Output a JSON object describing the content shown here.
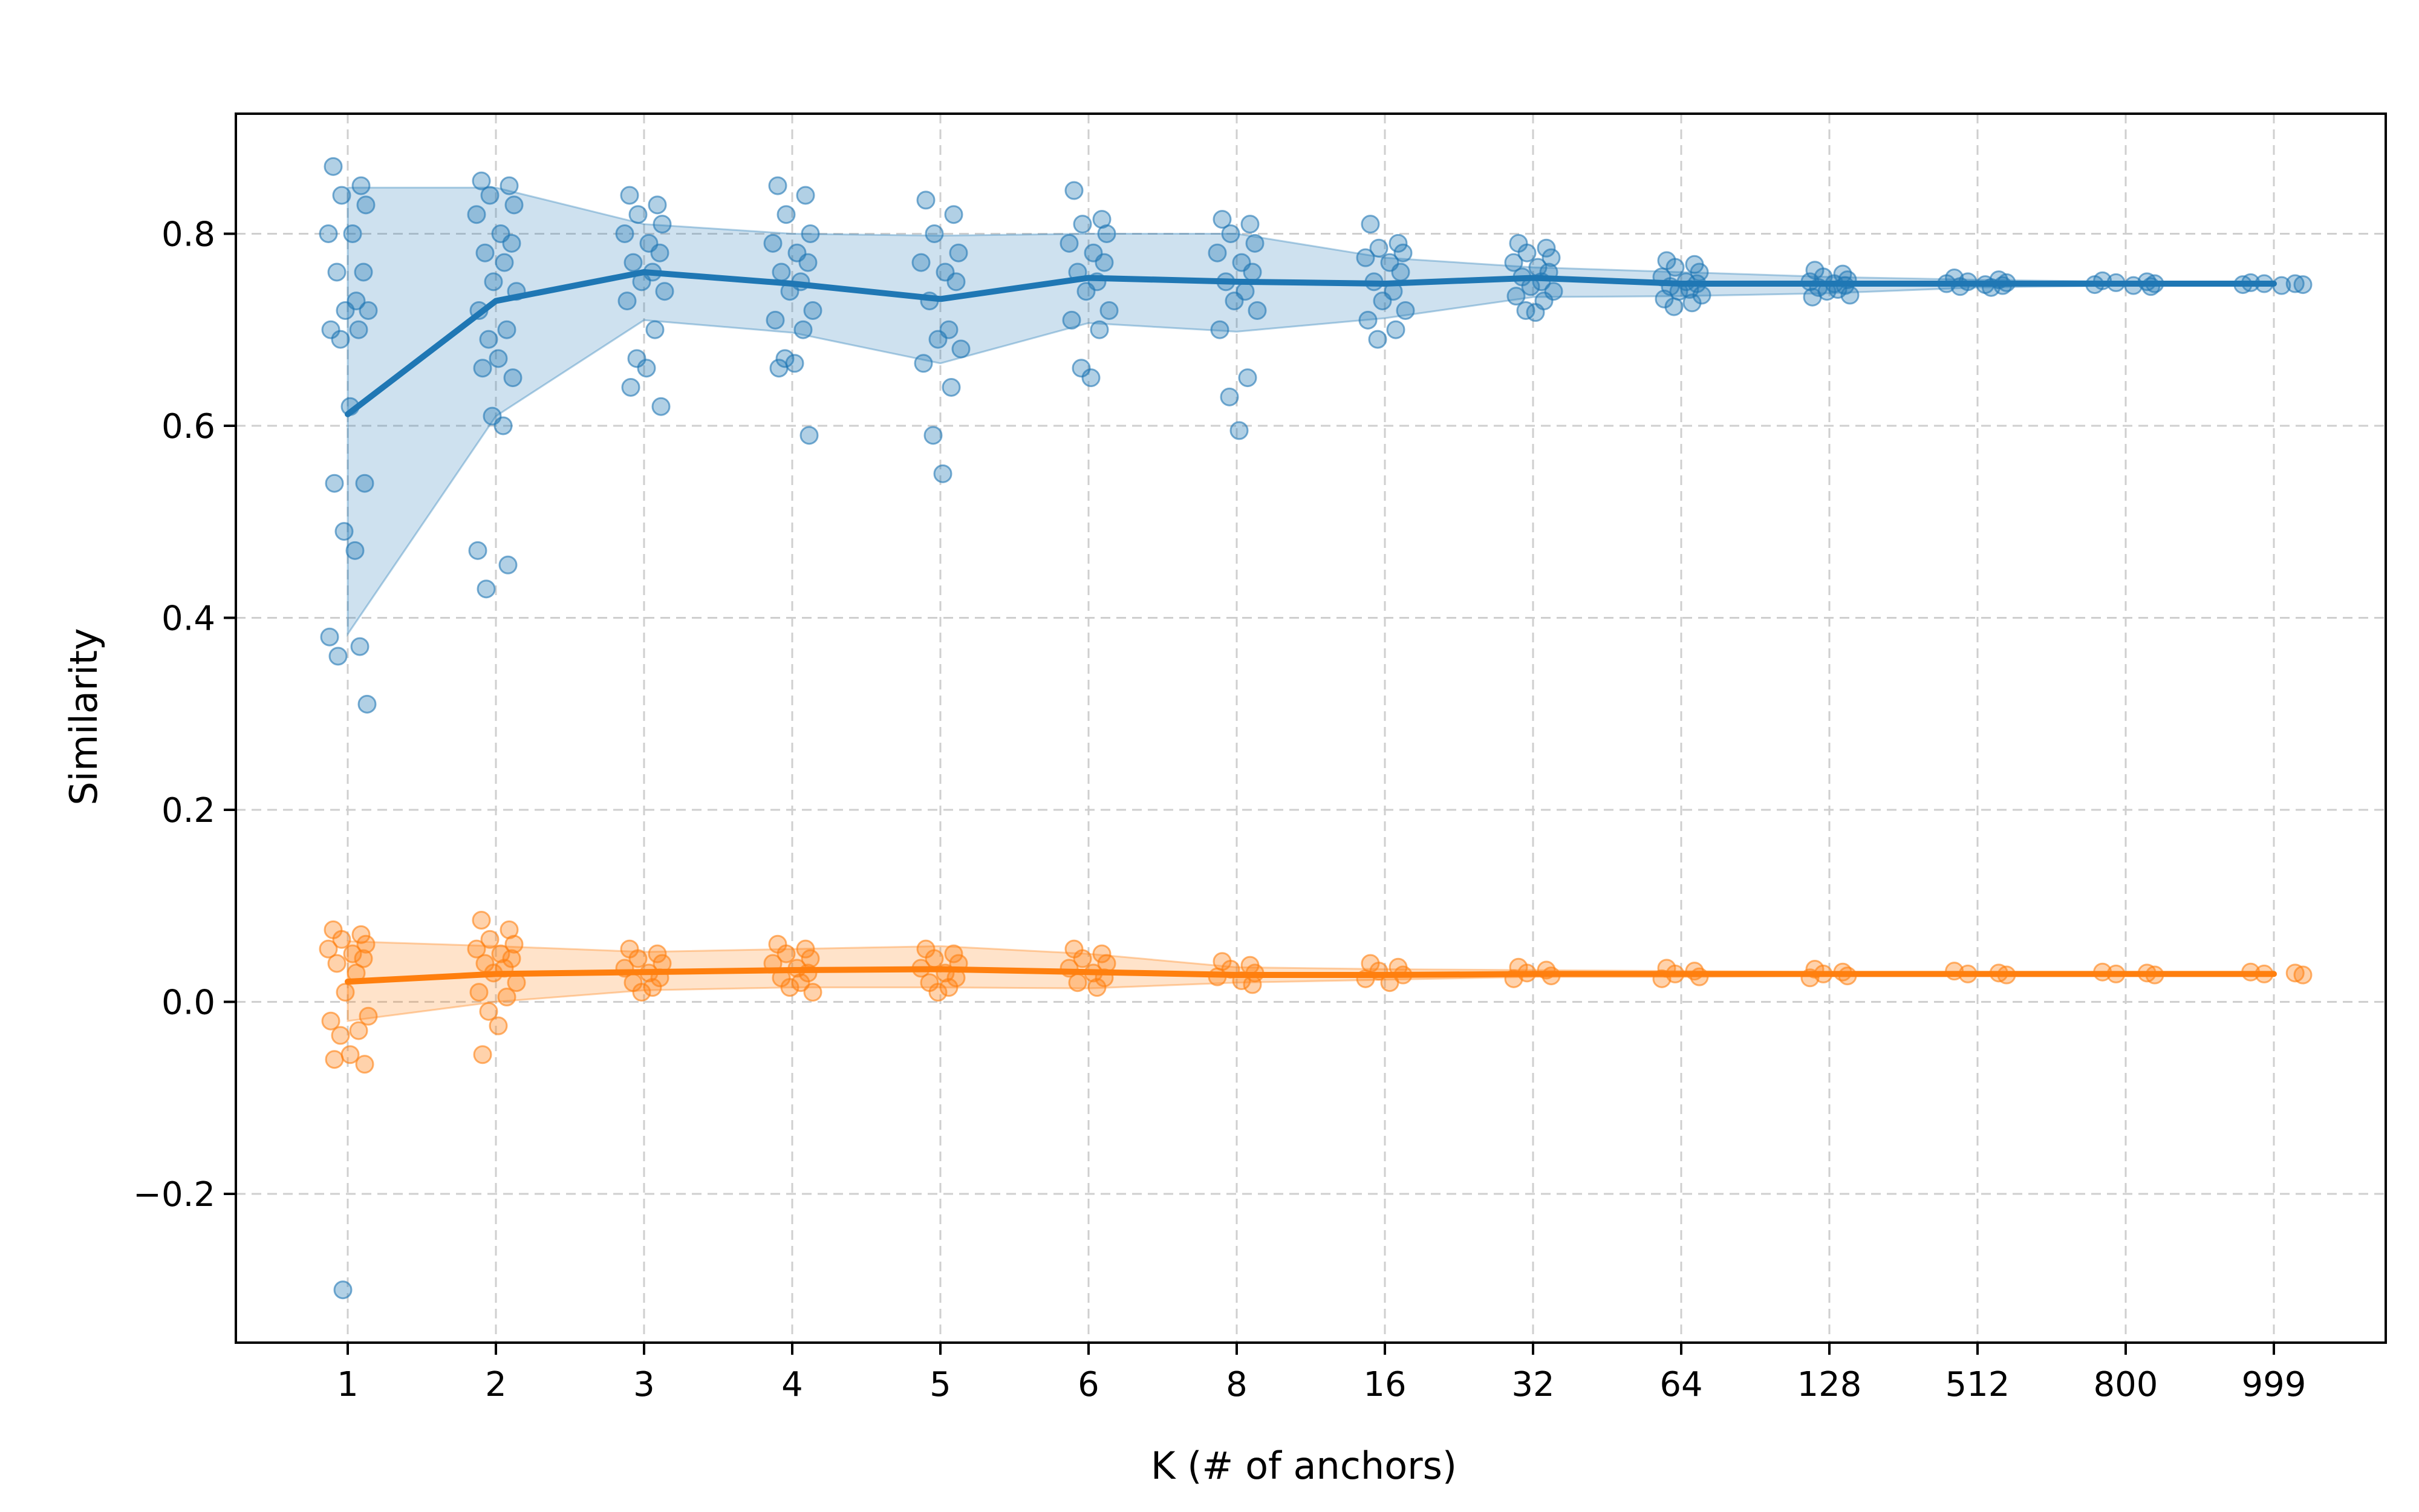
{
  "chart_data": {
    "type": "line",
    "title": "",
    "xlabel": "K (# of anchors)",
    "ylabel": "Similarity",
    "categories": [
      "1",
      "2",
      "3",
      "4",
      "5",
      "6",
      "8",
      "16",
      "32",
      "64",
      "128",
      "512",
      "800",
      "999"
    ],
    "y_ticks": [
      -0.2,
      0.0,
      0.2,
      0.4,
      0.6,
      0.8
    ],
    "y_tick_labels": [
      "−0.2",
      "0.0",
      "0.2",
      "0.4",
      "0.6",
      "0.8"
    ],
    "ylim": [
      -0.355,
      0.925
    ],
    "grid": true,
    "series": [
      {
        "name": "series-blue",
        "color": "#1f77b4",
        "mean": [
          0.612,
          0.73,
          0.76,
          0.748,
          0.732,
          0.754,
          0.75,
          0.748,
          0.754,
          0.748,
          0.748,
          0.748,
          0.748,
          0.748
        ],
        "upper": [
          0.848,
          0.848,
          0.81,
          0.8,
          0.798,
          0.8,
          0.8,
          0.775,
          0.765,
          0.76,
          0.755,
          0.752,
          0.75,
          0.75
        ],
        "lower": [
          0.383,
          0.61,
          0.71,
          0.697,
          0.665,
          0.707,
          0.698,
          0.712,
          0.734,
          0.735,
          0.738,
          0.744,
          0.746,
          0.746
        ],
        "points": [
          [
            0.87,
            0.85,
            0.84,
            0.83,
            0.8,
            0.8,
            0.76,
            0.76,
            0.73,
            0.72,
            0.72,
            0.7,
            0.7,
            0.69,
            0.62,
            0.54,
            0.54,
            0.49,
            0.47,
            0.38,
            0.37,
            0.36,
            0.31,
            -0.3
          ],
          [
            0.855,
            0.85,
            0.84,
            0.83,
            0.82,
            0.8,
            0.79,
            0.78,
            0.77,
            0.75,
            0.74,
            0.72,
            0.7,
            0.69,
            0.67,
            0.66,
            0.65,
            0.61,
            0.6,
            0.47,
            0.455,
            0.43
          ],
          [
            0.84,
            0.83,
            0.82,
            0.81,
            0.8,
            0.79,
            0.78,
            0.77,
            0.76,
            0.75,
            0.74,
            0.73,
            0.7,
            0.67,
            0.66,
            0.64,
            0.62
          ],
          [
            0.85,
            0.84,
            0.82,
            0.8,
            0.79,
            0.78,
            0.77,
            0.76,
            0.75,
            0.74,
            0.72,
            0.71,
            0.7,
            0.67,
            0.665,
            0.66,
            0.59
          ],
          [
            0.835,
            0.82,
            0.8,
            0.78,
            0.77,
            0.76,
            0.75,
            0.73,
            0.7,
            0.69,
            0.68,
            0.665,
            0.64,
            0.59,
            0.55
          ],
          [
            0.845,
            0.815,
            0.81,
            0.8,
            0.79,
            0.78,
            0.77,
            0.76,
            0.75,
            0.74,
            0.72,
            0.71,
            0.7,
            0.66,
            0.65
          ],
          [
            0.815,
            0.81,
            0.8,
            0.79,
            0.78,
            0.77,
            0.76,
            0.75,
            0.74,
            0.73,
            0.72,
            0.7,
            0.65,
            0.63,
            0.595
          ],
          [
            0.81,
            0.79,
            0.785,
            0.78,
            0.775,
            0.77,
            0.76,
            0.75,
            0.74,
            0.73,
            0.72,
            0.71,
            0.7,
            0.69
          ],
          [
            0.79,
            0.785,
            0.78,
            0.775,
            0.77,
            0.765,
            0.76,
            0.755,
            0.75,
            0.745,
            0.74,
            0.735,
            0.73,
            0.72,
            0.718
          ],
          [
            0.772,
            0.768,
            0.765,
            0.76,
            0.755,
            0.75,
            0.748,
            0.745,
            0.742,
            0.74,
            0.736,
            0.732,
            0.728,
            0.724
          ],
          [
            0.762,
            0.758,
            0.755,
            0.752,
            0.75,
            0.748,
            0.746,
            0.744,
            0.742,
            0.74,
            0.736,
            0.734
          ],
          [
            0.754,
            0.752,
            0.75,
            0.749,
            0.748,
            0.747,
            0.746,
            0.745,
            0.744
          ],
          [
            0.751,
            0.75,
            0.749,
            0.748,
            0.747,
            0.746,
            0.745
          ],
          [
            0.749,
            0.748,
            0.748,
            0.747,
            0.747,
            0.746
          ]
        ]
      },
      {
        "name": "series-orange",
        "color": "#ff7f0e",
        "mean": [
          0.021,
          0.029,
          0.031,
          0.033,
          0.034,
          0.031,
          0.028,
          0.028,
          0.029,
          0.029,
          0.029,
          0.029,
          0.029,
          0.029
        ],
        "upper": [
          0.063,
          0.058,
          0.052,
          0.055,
          0.058,
          0.05,
          0.036,
          0.034,
          0.033,
          0.032,
          0.031,
          0.03,
          0.03,
          0.03
        ],
        "lower": [
          -0.02,
          0.0,
          0.012,
          0.015,
          0.015,
          0.014,
          0.02,
          0.023,
          0.026,
          0.026,
          0.027,
          0.028,
          0.028,
          0.028
        ],
        "points": [
          [
            0.075,
            0.07,
            0.065,
            0.06,
            0.055,
            0.05,
            0.045,
            0.04,
            0.03,
            0.01,
            -0.015,
            -0.02,
            -0.03,
            -0.035,
            -0.055,
            -0.06,
            -0.065
          ],
          [
            0.085,
            0.075,
            0.065,
            0.06,
            0.055,
            0.05,
            0.045,
            0.04,
            0.035,
            0.03,
            0.02,
            0.01,
            0.005,
            -0.01,
            -0.025,
            -0.055
          ],
          [
            0.055,
            0.05,
            0.045,
            0.04,
            0.035,
            0.03,
            0.025,
            0.02,
            0.015,
            0.01
          ],
          [
            0.06,
            0.055,
            0.05,
            0.045,
            0.04,
            0.035,
            0.03,
            0.025,
            0.02,
            0.015,
            0.01
          ],
          [
            0.055,
            0.05,
            0.045,
            0.04,
            0.035,
            0.03,
            0.025,
            0.02,
            0.015,
            0.01
          ],
          [
            0.055,
            0.05,
            0.045,
            0.04,
            0.035,
            0.03,
            0.025,
            0.02,
            0.015
          ],
          [
            0.042,
            0.038,
            0.034,
            0.03,
            0.026,
            0.022,
            0.018
          ],
          [
            0.04,
            0.036,
            0.032,
            0.028,
            0.024,
            0.02
          ],
          [
            0.036,
            0.033,
            0.03,
            0.027,
            0.024
          ],
          [
            0.035,
            0.032,
            0.029,
            0.026,
            0.024
          ],
          [
            0.034,
            0.031,
            0.029,
            0.027,
            0.025
          ],
          [
            0.032,
            0.03,
            0.029,
            0.028
          ],
          [
            0.031,
            0.03,
            0.029,
            0.028
          ],
          [
            0.031,
            0.03,
            0.029,
            0.028
          ]
        ]
      }
    ]
  }
}
